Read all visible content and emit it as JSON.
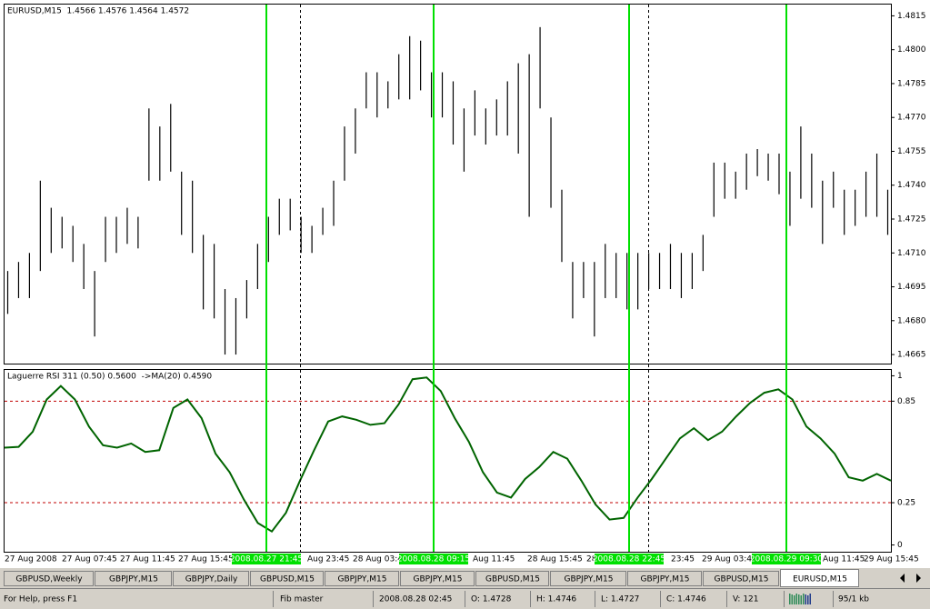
{
  "chart_data": [
    {
      "type": "ohlc",
      "title": "EURUSD,M15  1.4566 1.4576 1.4564 1.4572",
      "color": "#000000",
      "high": [
        1.4702,
        1.4706,
        1.471,
        1.4742,
        1.473,
        1.4726,
        1.4722,
        1.4714,
        1.4702,
        1.4726,
        1.4726,
        1.473,
        1.4726,
        1.4774,
        1.4766,
        1.4776,
        1.4746,
        1.4742,
        1.4718,
        1.4714,
        1.4694,
        1.469,
        1.4698,
        1.4714,
        1.4726,
        1.4734,
        1.4734,
        1.4726,
        1.4722,
        1.473,
        1.4742,
        1.4766,
        1.4774,
        1.479,
        1.479,
        1.4786,
        1.4798,
        1.4806,
        1.4804,
        1.479,
        1.479,
        1.4786,
        1.4774,
        1.4782,
        1.4774,
        1.4778,
        1.4786,
        1.4794,
        1.4798,
        1.481,
        1.477,
        1.4738,
        1.4706,
        1.4706,
        1.4706,
        1.4714,
        1.471,
        1.471,
        1.471,
        1.471,
        1.471,
        1.4714,
        1.471,
        1.471,
        1.4718,
        1.475,
        1.475,
        1.4746,
        1.4754,
        1.4756,
        1.4754,
        1.4754,
        1.4746,
        1.4766,
        1.4754,
        1.4742,
        1.4746,
        1.4738,
        1.4738,
        1.4746,
        1.4754,
        1.4738
      ],
      "low": [
        1.4683,
        1.469,
        1.469,
        1.4702,
        1.471,
        1.4712,
        1.4706,
        1.4694,
        1.4673,
        1.4706,
        1.471,
        1.4714,
        1.4712,
        1.4742,
        1.4742,
        1.4746,
        1.4718,
        1.471,
        1.4685,
        1.4681,
        1.4665,
        1.4665,
        1.4681,
        1.4694,
        1.4706,
        1.4718,
        1.472,
        1.471,
        1.471,
        1.4718,
        1.4722,
        1.4742,
        1.4754,
        1.4774,
        1.477,
        1.4774,
        1.4778,
        1.4778,
        1.4782,
        1.477,
        1.477,
        1.4758,
        1.4746,
        1.4762,
        1.4758,
        1.4762,
        1.4762,
        1.4754,
        1.4726,
        1.4774,
        1.473,
        1.4706,
        1.4681,
        1.469,
        1.4673,
        1.469,
        1.469,
        1.4685,
        1.4685,
        1.4694,
        1.4694,
        1.4694,
        1.469,
        1.4694,
        1.4702,
        1.4726,
        1.4734,
        1.4734,
        1.4738,
        1.4744,
        1.4742,
        1.4736,
        1.4722,
        1.4734,
        1.473,
        1.4714,
        1.473,
        1.4718,
        1.4722,
        1.4726,
        1.4726,
        1.4718
      ],
      "ylim": [
        1.4661,
        1.482
      ],
      "yticks": [
        1.4815,
        {
          "value": 1.48,
          "label": "1.4800"
        },
        1.4785,
        {
          "value": 1.477,
          "label": "1.4770"
        },
        1.4755,
        {
          "value": 1.474,
          "label": "1.4740"
        },
        1.4725,
        {
          "value": 1.471,
          "label": "1.4710"
        },
        1.4695,
        {
          "value": 1.468,
          "label": "1.4680"
        },
        1.4665
      ]
    },
    {
      "type": "line",
      "title": "Laguerre RSI 311 (0.50) 0.5600  ->MA(20) 0.4590",
      "color": "#006400",
      "values": [
        0.575,
        0.58,
        0.67,
        0.86,
        0.94,
        0.86,
        0.7,
        0.59,
        0.575,
        0.6,
        0.55,
        0.56,
        0.81,
        0.86,
        0.75,
        0.54,
        0.43,
        0.27,
        0.13,
        0.08,
        0.19,
        0.38,
        0.56,
        0.73,
        0.76,
        0.74,
        0.71,
        0.72,
        0.83,
        0.98,
        0.99,
        0.91,
        0.75,
        0.61,
        0.43,
        0.31,
        0.28,
        0.39,
        0.46,
        0.55,
        0.51,
        0.38,
        0.24,
        0.15,
        0.16,
        0.28,
        0.39,
        0.51,
        0.63,
        0.69,
        0.62,
        0.67,
        0.76,
        0.84,
        0.9,
        0.92,
        0.86,
        0.7,
        0.63,
        0.54,
        0.4,
        0.38,
        0.42,
        0.38
      ],
      "ylim": [
        -0.04,
        1.04
      ],
      "yticks": [
        1,
        0.85,
        0.25,
        0
      ]
    }
  ],
  "time_axis": {
    "labels": [
      "27 Aug 2008",
      "27 Aug 07:45",
      "27 Aug 11:45",
      "27 Aug 15:45",
      "Aug 23:45",
      "28 Aug 03:4",
      "Aug 11:45",
      "28 Aug 15:45",
      "28 Aug",
      "23:45",
      "29 Aug 03:45",
      "Aug 11:45",
      "29 Aug 15:45"
    ],
    "markers": [
      "2008.08.27 21:45",
      "2008.08.28 09:15",
      "2008.08.28 22:45",
      "2008.08.29 09:30"
    ]
  },
  "tabs": [
    "GBPUSD,Weekly",
    "GBPJPY,M15",
    "GBPJPY,Daily",
    "GBPUSD,M15",
    "GBPJPY,M15",
    "GBPJPY,M15",
    "GBPUSD,M15",
    "GBPJPY,M15",
    "GBPJPY,M15",
    "GBPUSD,M15",
    "EURUSD,M15"
  ],
  "status": [
    "For Help, press F1",
    "Fib master",
    "2008.08.28 02:45",
    "O: 1.4728",
    "H: 1.4746",
    "L: 1.4727",
    "C: 1.4746",
    "V: 121",
    "95/1 kb"
  ]
}
